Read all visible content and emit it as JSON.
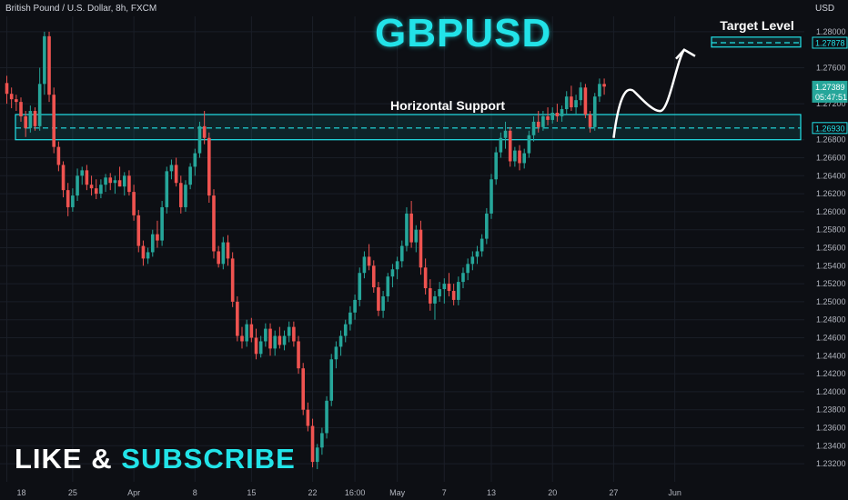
{
  "header": {
    "symbol_title": "British Pound / U.S. Dollar, 8h, FXCM",
    "currency": "USD"
  },
  "overlay": {
    "title": "GBPUSD",
    "promo_like": "LIKE",
    "promo_amp": "&",
    "promo_subscribe": "SUBSCRIBE"
  },
  "colors": {
    "background": "#0d0f14",
    "bull": "#26a69a",
    "bear": "#ef5350",
    "accent": "#22e3e8",
    "grid": "#1a1e27",
    "axis_text": "#b2b5be"
  },
  "chart_data": {
    "type": "candlestick",
    "title": "GBPUSD",
    "ylim": [
      1.231,
      1.281
    ],
    "y_ticks": [
      "1.28000",
      "1.27600",
      "1.27200",
      "1.26800",
      "1.26600",
      "1.26400",
      "1.26200",
      "1.26000",
      "1.25800",
      "1.25600",
      "1.25400",
      "1.25200",
      "1.25000",
      "1.24800",
      "1.24600",
      "1.24400",
      "1.24200",
      "1.24000",
      "1.23800",
      "1.23600",
      "1.23400",
      "1.23200"
    ],
    "y_tick_values": [
      1.28,
      1.276,
      1.272,
      1.268,
      1.266,
      1.264,
      1.262,
      1.26,
      1.258,
      1.256,
      1.254,
      1.252,
      1.25,
      1.248,
      1.246,
      1.244,
      1.242,
      1.24,
      1.238,
      1.236,
      1.234,
      1.232
    ],
    "x_ticks": [
      {
        "label": "18",
        "index": 0
      },
      {
        "label": "25",
        "index": 14
      },
      {
        "label": "Apr",
        "index": 27
      },
      {
        "label": "8",
        "index": 40
      },
      {
        "label": "15",
        "index": 52
      },
      {
        "label": "22",
        "index": 65
      },
      {
        "label": "16:00",
        "index": 74
      },
      {
        "label": "May",
        "index": 83
      },
      {
        "label": "7",
        "index": 93
      },
      {
        "label": "13",
        "index": 103
      },
      {
        "label": "20",
        "index": 116
      },
      {
        "label": "27",
        "index": 129
      },
      {
        "label": "Jun",
        "index": 142
      }
    ],
    "price_labels": [
      {
        "value": 1.27878,
        "text": "1.27878",
        "style": "target"
      },
      {
        "value": 1.27389,
        "text": "1.27389",
        "style": "last"
      },
      {
        "value": 1.27339,
        "text": "05:47:51",
        "style": "countdown"
      },
      {
        "value": 1.2693,
        "text": "1.26930",
        "style": "support"
      }
    ],
    "annotations": [
      {
        "type": "zone",
        "label": "Horizontal Support",
        "low": 1.268,
        "high": 1.2708,
        "mid": 1.2693,
        "from_index": 0,
        "to_index": 150
      },
      {
        "type": "zone",
        "label": "Target Level",
        "low": 1.2783,
        "high": 1.2794,
        "mid": 1.27878,
        "from_index": 133,
        "to_index": 150
      }
    ],
    "projection": [
      {
        "index": 129,
        "value": 1.2682
      },
      {
        "index": 133,
        "value": 1.2735
      },
      {
        "index": 136,
        "value": 1.2742
      },
      {
        "index": 139,
        "value": 1.2712
      },
      {
        "index": 142,
        "value": 1.273
      },
      {
        "index": 144,
        "value": 1.278
      }
    ],
    "candles": [
      [
        1.2743,
        1.2751,
        1.272,
        1.2731
      ],
      [
        1.2731,
        1.2738,
        1.2715,
        1.2725
      ],
      [
        1.2725,
        1.273,
        1.2712,
        1.2722
      ],
      [
        1.2722,
        1.2727,
        1.27,
        1.2706
      ],
      [
        1.2706,
        1.2712,
        1.2683,
        1.2693
      ],
      [
        1.2693,
        1.2718,
        1.2688,
        1.2712
      ],
      [
        1.2712,
        1.2716,
        1.269,
        1.2695
      ],
      [
        1.2695,
        1.276,
        1.269,
        1.2742
      ],
      [
        1.2742,
        1.28,
        1.273,
        1.2795
      ],
      [
        1.2795,
        1.28,
        1.2722,
        1.273
      ],
      [
        1.273,
        1.2738,
        1.2665,
        1.2672
      ],
      [
        1.2672,
        1.2678,
        1.2645,
        1.2652
      ],
      [
        1.2652,
        1.2656,
        1.2616,
        1.2624
      ],
      [
        1.2624,
        1.2632,
        1.2595,
        1.2605
      ],
      [
        1.2605,
        1.2626,
        1.26,
        1.2618
      ],
      [
        1.2618,
        1.2648,
        1.2612,
        1.264
      ],
      [
        1.264,
        1.265,
        1.263,
        1.2646
      ],
      [
        1.2646,
        1.2652,
        1.2624,
        1.263
      ],
      [
        1.263,
        1.264,
        1.2618,
        1.2626
      ],
      [
        1.2626,
        1.2636,
        1.2614,
        1.262
      ],
      [
        1.262,
        1.2636,
        1.2615,
        1.263
      ],
      [
        1.263,
        1.2642,
        1.2622,
        1.2638
      ],
      [
        1.2638,
        1.2643,
        1.2624,
        1.2632
      ],
      [
        1.2632,
        1.264,
        1.262,
        1.2635
      ],
      [
        1.2635,
        1.265,
        1.2628,
        1.2628
      ],
      [
        1.2628,
        1.2644,
        1.2618,
        1.264
      ],
      [
        1.264,
        1.2646,
        1.2618,
        1.2622
      ],
      [
        1.2622,
        1.263,
        1.259,
        1.2596
      ],
      [
        1.2596,
        1.2602,
        1.2555,
        1.2562
      ],
      [
        1.2562,
        1.2568,
        1.254,
        1.2548
      ],
      [
        1.2548,
        1.256,
        1.2542,
        1.2555
      ],
      [
        1.2555,
        1.258,
        1.255,
        1.2575
      ],
      [
        1.2575,
        1.259,
        1.256,
        1.2568
      ],
      [
        1.2568,
        1.2612,
        1.2562,
        1.2605
      ],
      [
        1.2605,
        1.265,
        1.2598,
        1.2645
      ],
      [
        1.2645,
        1.2658,
        1.2636,
        1.2652
      ],
      [
        1.2652,
        1.266,
        1.2628,
        1.2632
      ],
      [
        1.2632,
        1.264,
        1.2598,
        1.2605
      ],
      [
        1.2605,
        1.2635,
        1.26,
        1.263
      ],
      [
        1.263,
        1.2654,
        1.2625,
        1.265
      ],
      [
        1.265,
        1.267,
        1.264,
        1.2665
      ],
      [
        1.2665,
        1.27,
        1.266,
        1.2695
      ],
      [
        1.2695,
        1.2712,
        1.2675,
        1.2682
      ],
      [
        1.2682,
        1.2688,
        1.261,
        1.2618
      ],
      [
        1.2618,
        1.2625,
        1.2548,
        1.2556
      ],
      [
        1.2556,
        1.2562,
        1.2538,
        1.2542
      ],
      [
        1.2542,
        1.2572,
        1.2536,
        1.2566
      ],
      [
        1.2566,
        1.2574,
        1.254,
        1.2548
      ],
      [
        1.2548,
        1.2555,
        1.2494,
        1.25
      ],
      [
        1.25,
        1.2506,
        1.2456,
        1.2462
      ],
      [
        1.2462,
        1.2472,
        1.2448,
        1.2456
      ],
      [
        1.2456,
        1.248,
        1.245,
        1.2475
      ],
      [
        1.2475,
        1.2482,
        1.2455,
        1.246
      ],
      [
        1.246,
        1.247,
        1.2436,
        1.2442
      ],
      [
        1.2442,
        1.2462,
        1.2438,
        1.2456
      ],
      [
        1.2456,
        1.2476,
        1.245,
        1.247
      ],
      [
        1.247,
        1.2476,
        1.244,
        1.2448
      ],
      [
        1.2448,
        1.2468,
        1.244,
        1.2462
      ],
      [
        1.2462,
        1.2472,
        1.2448,
        1.2452
      ],
      [
        1.2452,
        1.2468,
        1.2446,
        1.2462
      ],
      [
        1.2462,
        1.2478,
        1.2455,
        1.2472
      ],
      [
        1.2472,
        1.2478,
        1.245,
        1.2456
      ],
      [
        1.2456,
        1.2462,
        1.242,
        1.2426
      ],
      [
        1.2426,
        1.2432,
        1.2374,
        1.238
      ],
      [
        1.238,
        1.2388,
        1.2356,
        1.2362
      ],
      [
        1.2362,
        1.237,
        1.2316,
        1.2322
      ],
      [
        1.2322,
        1.2342,
        1.2314,
        1.2338
      ],
      [
        1.2338,
        1.236,
        1.233,
        1.2354
      ],
      [
        1.2354,
        1.2395,
        1.2348,
        1.239
      ],
      [
        1.239,
        1.2442,
        1.2384,
        1.2436
      ],
      [
        1.2436,
        1.2456,
        1.2426,
        1.245
      ],
      [
        1.245,
        1.2468,
        1.244,
        1.2462
      ],
      [
        1.2462,
        1.248,
        1.2455,
        1.2475
      ],
      [
        1.2475,
        1.2495,
        1.2468,
        1.2488
      ],
      [
        1.2488,
        1.2508,
        1.248,
        1.2502
      ],
      [
        1.2502,
        1.2538,
        1.2495,
        1.2532
      ],
      [
        1.2532,
        1.2556,
        1.2526,
        1.255
      ],
      [
        1.255,
        1.2564,
        1.2535,
        1.254
      ],
      [
        1.254,
        1.2546,
        1.251,
        1.2516
      ],
      [
        1.2516,
        1.2522,
        1.2484,
        1.249
      ],
      [
        1.249,
        1.2512,
        1.2482,
        1.2506
      ],
      [
        1.2506,
        1.2532,
        1.25,
        1.2528
      ],
      [
        1.2528,
        1.2542,
        1.2516,
        1.2536
      ],
      [
        1.2536,
        1.255,
        1.2525,
        1.2545
      ],
      [
        1.2545,
        1.2568,
        1.2538,
        1.2562
      ],
      [
        1.2562,
        1.2605,
        1.2556,
        1.2598
      ],
      [
        1.2598,
        1.2612,
        1.256,
        1.2566
      ],
      [
        1.2566,
        1.2585,
        1.2555,
        1.258
      ],
      [
        1.258,
        1.259,
        1.253,
        1.2538
      ],
      [
        1.2538,
        1.2548,
        1.2508,
        1.2515
      ],
      [
        1.2515,
        1.2525,
        1.249,
        1.2498
      ],
      [
        1.2498,
        1.2512,
        1.248,
        1.2506
      ],
      [
        1.2506,
        1.2522,
        1.25,
        1.2514
      ],
      [
        1.2514,
        1.2526,
        1.2498,
        1.252
      ],
      [
        1.252,
        1.2532,
        1.2506,
        1.2512
      ],
      [
        1.2512,
        1.252,
        1.2496,
        1.2502
      ],
      [
        1.2502,
        1.2528,
        1.2496,
        1.2522
      ],
      [
        1.2522,
        1.2538,
        1.2515,
        1.2532
      ],
      [
        1.2532,
        1.2548,
        1.2524,
        1.2542
      ],
      [
        1.2542,
        1.2556,
        1.2535,
        1.255
      ],
      [
        1.255,
        1.2562,
        1.2542,
        1.2556
      ],
      [
        1.2556,
        1.2575,
        1.255,
        1.257
      ],
      [
        1.257,
        1.2604,
        1.2564,
        1.2598
      ],
      [
        1.2598,
        1.2642,
        1.2592,
        1.2636
      ],
      [
        1.2636,
        1.2672,
        1.263,
        1.2666
      ],
      [
        1.2666,
        1.2688,
        1.266,
        1.2682
      ],
      [
        1.2682,
        1.27,
        1.267,
        1.269
      ],
      [
        1.269,
        1.2694,
        1.265,
        1.2656
      ],
      [
        1.2656,
        1.2672,
        1.265,
        1.2668
      ],
      [
        1.2668,
        1.2674,
        1.2646,
        1.2654
      ],
      [
        1.2654,
        1.267,
        1.2648,
        1.2665
      ],
      [
        1.2665,
        1.269,
        1.266,
        1.2685
      ],
      [
        1.2685,
        1.2706,
        1.2678,
        1.27
      ],
      [
        1.27,
        1.2712,
        1.2688,
        1.2694
      ],
      [
        1.2694,
        1.2712,
        1.269,
        1.2706
      ],
      [
        1.2706,
        1.2716,
        1.2696,
        1.2702
      ],
      [
        1.2702,
        1.2716,
        1.2698,
        1.271
      ],
      [
        1.271,
        1.272,
        1.27,
        1.2706
      ],
      [
        1.2706,
        1.2718,
        1.27,
        1.2714
      ],
      [
        1.2714,
        1.2734,
        1.2708,
        1.2728
      ],
      [
        1.2728,
        1.274,
        1.2712,
        1.2716
      ],
      [
        1.2716,
        1.273,
        1.2708,
        1.2724
      ],
      [
        1.2724,
        1.2744,
        1.2718,
        1.2738
      ],
      [
        1.2738,
        1.2742,
        1.2704,
        1.2708
      ],
      [
        1.2708,
        1.2712,
        1.2688,
        1.2694
      ],
      [
        1.2694,
        1.2732,
        1.269,
        1.2728
      ],
      [
        1.2728,
        1.2748,
        1.2722,
        1.2742
      ],
      [
        1.2742,
        1.2748,
        1.273,
        1.2739
      ]
    ]
  }
}
